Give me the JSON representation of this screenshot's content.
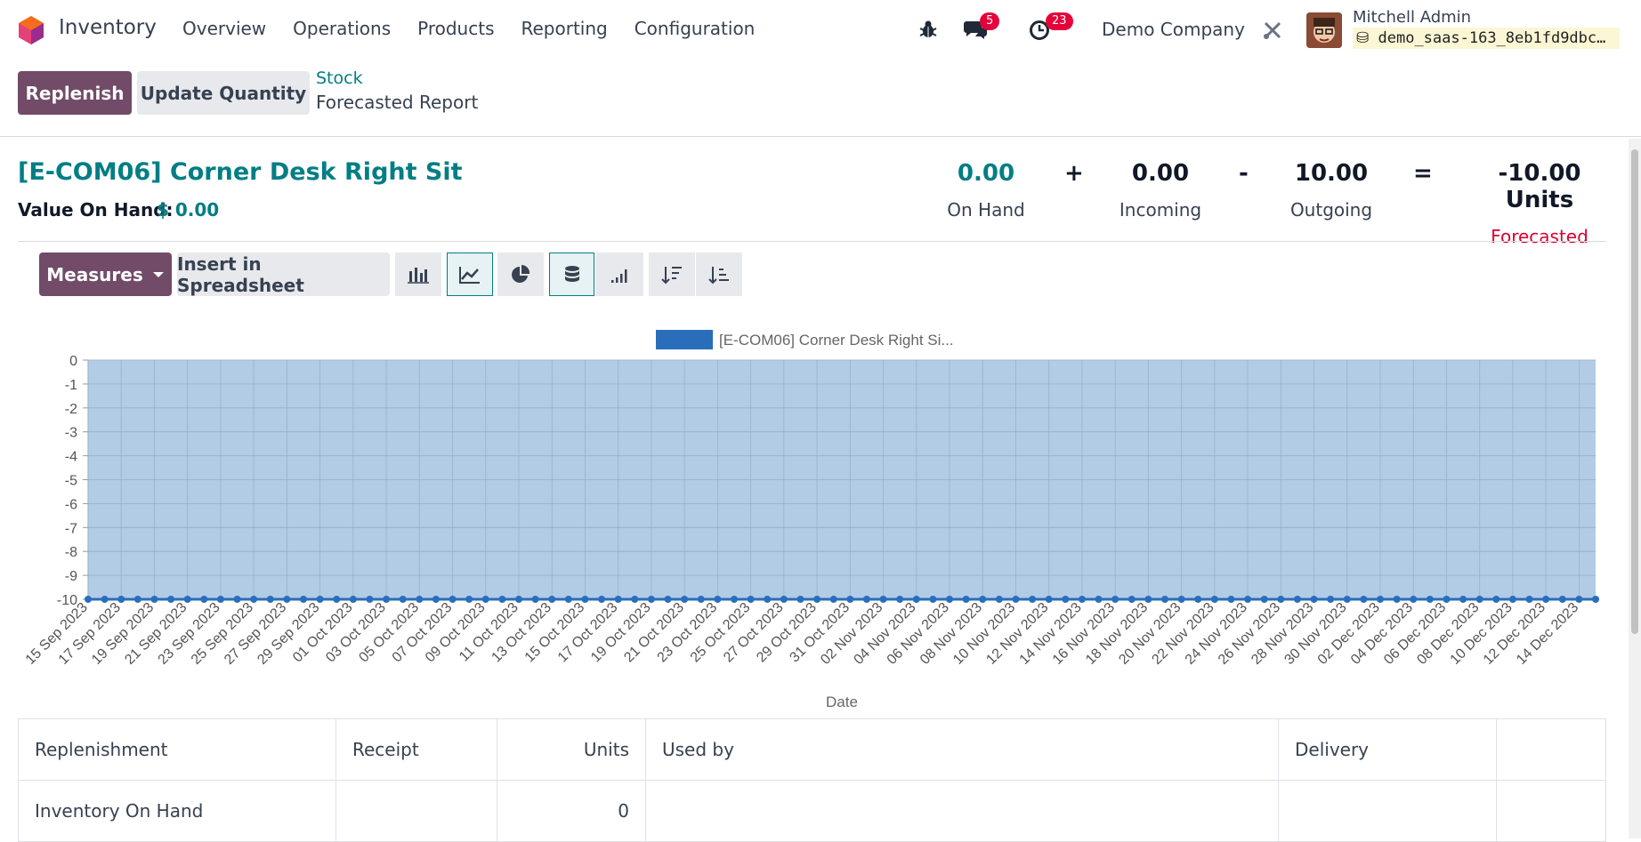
{
  "navbar": {
    "app_name": "Inventory",
    "menu": [
      "Overview",
      "Operations",
      "Products",
      "Reporting",
      "Configuration"
    ],
    "messages_count": "5",
    "activities_count": "23",
    "company": "Demo Company",
    "user_name": "Mitchell Admin",
    "db_name": "demo_saas-163_8eb1fd9dbc…"
  },
  "control_panel": {
    "replenish_label": "Replenish",
    "update_quantity_label": "Update Quantity",
    "breadcrumb_parent": "Stock",
    "breadcrumb_current": "Forecasted Report"
  },
  "product": {
    "title": "[E-COM06] Corner Desk Right Sit",
    "value_on_hand_label": "Value On Hand:",
    "value_on_hand": "$ 0.00",
    "on_hand": "0.00",
    "on_hand_label": "On Hand",
    "incoming": "0.00",
    "incoming_label": "Incoming",
    "outgoing": "10.00",
    "outgoing_label": "Outgoing",
    "forecasted": "-10.00 Units",
    "forecasted_label": "Forecasted",
    "op_plus": "+",
    "op_minus": "-",
    "op_equals": "="
  },
  "toolbar": {
    "measures_label": "Measures",
    "spreadsheet_label": "Insert in Spreadsheet",
    "icons": [
      "bar-chart-icon",
      "line-chart-icon",
      "pie-chart-icon",
      "stacked-icon",
      "cumulative-icon",
      "sort-descending-icon",
      "sort-ascending-icon"
    ],
    "active_color": "#017e84",
    "primary_color": "#714b67"
  },
  "chart_data": {
    "type": "area",
    "legend": "[E-COM06] Corner Desk Right Si...",
    "xlabel": "Date",
    "ylim": [
      -10,
      0
    ],
    "yticks": [
      0,
      -1,
      -2,
      -3,
      -4,
      -5,
      -6,
      -7,
      -8,
      -9,
      -10
    ],
    "x_tick_labels": [
      "15 Sep 2023",
      "17 Sep 2023",
      "19 Sep 2023",
      "21 Sep 2023",
      "23 Sep 2023",
      "25 Sep 2023",
      "27 Sep 2023",
      "29 Sep 2023",
      "01 Oct 2023",
      "03 Oct 2023",
      "05 Oct 2023",
      "07 Oct 2023",
      "09 Oct 2023",
      "11 Oct 2023",
      "13 Oct 2023",
      "15 Oct 2023",
      "17 Oct 2023",
      "19 Oct 2023",
      "21 Oct 2023",
      "23 Oct 2023",
      "25 Oct 2023",
      "27 Oct 2023",
      "29 Oct 2023",
      "31 Oct 2023",
      "02 Nov 2023",
      "04 Nov 2023",
      "06 Nov 2023",
      "08 Nov 2023",
      "10 Nov 2023",
      "12 Nov 2023",
      "14 Nov 2023",
      "16 Nov 2023",
      "18 Nov 2023",
      "20 Nov 2023",
      "22 Nov 2023",
      "24 Nov 2023",
      "26 Nov 2023",
      "28 Nov 2023",
      "30 Nov 2023",
      "02 Dec 2023",
      "04 Dec 2023",
      "06 Dec 2023",
      "08 Dec 2023",
      "10 Dec 2023",
      "12 Dec 2023",
      "14 Dec 2023"
    ],
    "start_date": "2023-09-15",
    "end_date": "2023-12-15",
    "series": [
      {
        "name": "[E-COM06] Corner Desk Right Si...",
        "constant_value": -10
      }
    ],
    "line_color": "#2a6ebb",
    "fill_color": "#a6c3e0"
  },
  "table": {
    "headers": [
      "Replenishment",
      "Receipt",
      "Units",
      "Used by",
      "Delivery",
      ""
    ],
    "rows": [
      [
        "Inventory On Hand",
        "",
        "0",
        "",
        "",
        ""
      ]
    ]
  }
}
